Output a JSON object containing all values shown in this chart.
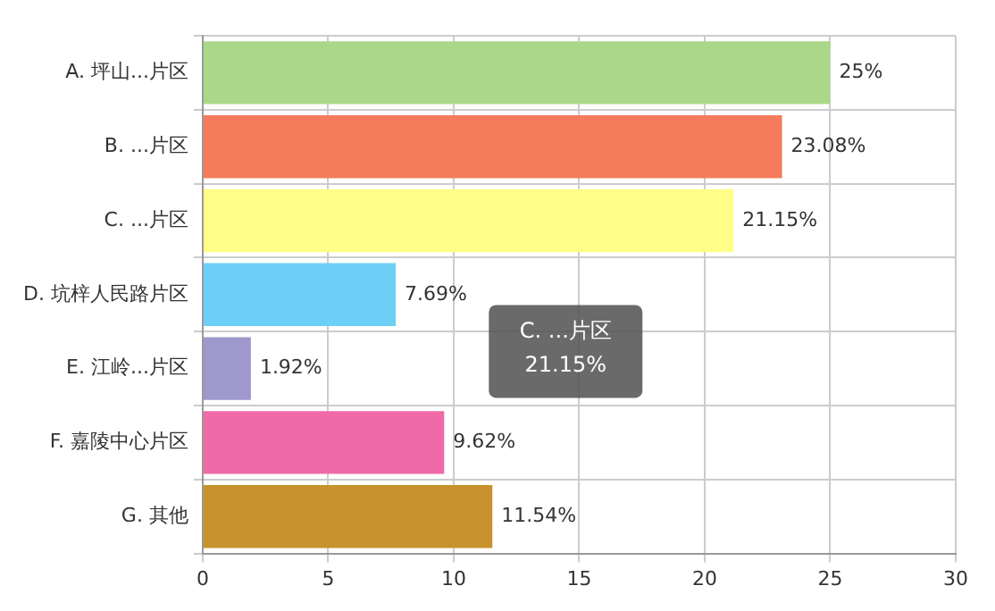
{
  "chart_data": {
    "type": "bar",
    "orientation": "horizontal",
    "categories": [
      "A. 坪山...片区",
      "B. ...片区",
      "C. ...片区",
      "D. 坑梓人民路片区",
      "E. 江岭...片区",
      "F. 嘉陵中心片区",
      "G. 其他"
    ],
    "values": [
      25,
      23.08,
      21.15,
      7.69,
      1.92,
      9.62,
      11.54
    ],
    "colors": [
      "#aad888",
      "#f47c5c",
      "#ffff88",
      "#6dcff6",
      "#9e98cc",
      "#f06aa8",
      "#c8922c"
    ],
    "value_labels": [
      "25%",
      "23.08%",
      "21.15%",
      "7.69%",
      "1.92%",
      "9.62%",
      "11.54%"
    ],
    "xlim": [
      0,
      30
    ],
    "xticks": [
      0,
      5,
      10,
      15,
      20,
      25,
      30
    ],
    "grid": true,
    "annotations": [
      "C. ...片区",
      "21.15%"
    ]
  }
}
